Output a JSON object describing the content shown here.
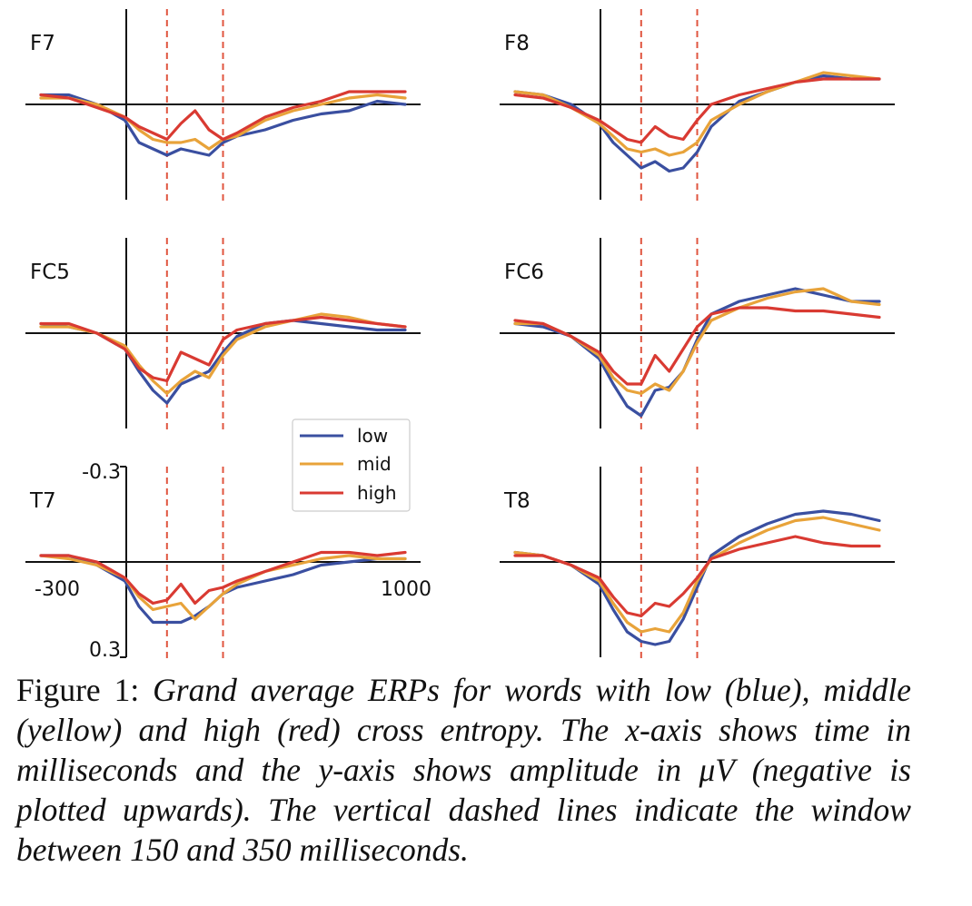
{
  "colors": {
    "low": "#3a4fa0",
    "mid": "#e8a33a",
    "high": "#d93a32",
    "window": "#e0553f",
    "axis": "#111111"
  },
  "axis_ticks": {
    "y_top": "-0.3",
    "y_bottom": "0.3",
    "x_left": "-300",
    "x_right": "1000"
  },
  "legend": {
    "low": "low",
    "mid": "mid",
    "high": "high"
  },
  "caption": {
    "prefix": "Figure 1: ",
    "body": "Grand average ERPs for words with low (blue), middle (yellow) and high (red) cross entropy. The x-axis shows time in milliseconds and the y-axis shows amplitude in μV (negative is plotted upwards). The vertical dashed lines indicate the window between 150 and 350 milliseconds."
  },
  "chart_data": {
    "type": "line",
    "xlim": [
      -300,
      1000
    ],
    "ylim": [
      -0.3,
      0.3
    ],
    "y_inverted": true,
    "x_ticks": [
      -300,
      1000
    ],
    "y_ticks": [
      -0.3,
      0.3
    ],
    "window_ms": [
      150,
      350
    ],
    "x": [
      -300,
      -200,
      -100,
      0,
      50,
      100,
      150,
      200,
      250,
      300,
      350,
      400,
      500,
      600,
      700,
      800,
      900,
      1000
    ],
    "panels": [
      {
        "name": "F7",
        "series": [
          {
            "name": "low",
            "values": [
              -0.03,
              -0.03,
              0.0,
              0.05,
              0.12,
              0.14,
              0.16,
              0.14,
              0.15,
              0.16,
              0.12,
              0.1,
              0.08,
              0.05,
              0.03,
              0.02,
              -0.01,
              0.0
            ]
          },
          {
            "name": "mid",
            "values": [
              -0.02,
              -0.02,
              0.0,
              0.04,
              0.08,
              0.11,
              0.12,
              0.12,
              0.11,
              0.14,
              0.11,
              0.1,
              0.05,
              0.02,
              0.0,
              -0.02,
              -0.03,
              -0.02
            ]
          },
          {
            "name": "high",
            "values": [
              -0.03,
              -0.02,
              0.01,
              0.04,
              0.07,
              0.09,
              0.11,
              0.06,
              0.02,
              0.08,
              0.11,
              0.09,
              0.04,
              0.01,
              -0.01,
              -0.04,
              -0.04,
              -0.04
            ]
          }
        ]
      },
      {
        "name": "F8",
        "series": [
          {
            "name": "low",
            "values": [
              -0.04,
              -0.03,
              0.0,
              0.06,
              0.12,
              0.16,
              0.2,
              0.18,
              0.21,
              0.2,
              0.15,
              0.07,
              -0.01,
              -0.04,
              -0.07,
              -0.09,
              -0.08,
              -0.08
            ]
          },
          {
            "name": "mid",
            "values": [
              -0.04,
              -0.03,
              0.01,
              0.06,
              0.1,
              0.14,
              0.15,
              0.14,
              0.16,
              0.15,
              0.12,
              0.05,
              0.0,
              -0.04,
              -0.07,
              -0.1,
              -0.09,
              -0.08
            ]
          },
          {
            "name": "high",
            "values": [
              -0.03,
              -0.02,
              0.01,
              0.05,
              0.08,
              0.11,
              0.12,
              0.07,
              0.1,
              0.11,
              0.05,
              0.0,
              -0.03,
              -0.05,
              -0.07,
              -0.08,
              -0.08,
              -0.08
            ]
          }
        ]
      },
      {
        "name": "FC5",
        "series": [
          {
            "name": "low",
            "values": [
              -0.03,
              -0.02,
              0.0,
              0.05,
              0.12,
              0.18,
              0.22,
              0.16,
              0.14,
              0.12,
              0.06,
              0.01,
              -0.03,
              -0.04,
              -0.03,
              -0.02,
              -0.01,
              -0.01
            ]
          },
          {
            "name": "mid",
            "values": [
              -0.02,
              -0.02,
              0.0,
              0.04,
              0.1,
              0.15,
              0.19,
              0.15,
              0.12,
              0.14,
              0.07,
              0.02,
              -0.02,
              -0.04,
              -0.06,
              -0.05,
              -0.03,
              -0.02
            ]
          },
          {
            "name": "high",
            "values": [
              -0.03,
              -0.03,
              0.0,
              0.05,
              0.11,
              0.14,
              0.15,
              0.06,
              0.08,
              0.1,
              0.02,
              -0.01,
              -0.03,
              -0.04,
              -0.05,
              -0.04,
              -0.03,
              -0.02
            ]
          }
        ]
      },
      {
        "name": "FC6",
        "series": [
          {
            "name": "low",
            "values": [
              -0.03,
              -0.02,
              0.01,
              0.08,
              0.16,
              0.23,
              0.26,
              0.18,
              0.17,
              0.12,
              0.02,
              -0.06,
              -0.1,
              -0.12,
              -0.14,
              -0.12,
              -0.1,
              -0.1
            ]
          },
          {
            "name": "mid",
            "values": [
              -0.03,
              -0.03,
              0.01,
              0.07,
              0.14,
              0.18,
              0.19,
              0.16,
              0.18,
              0.12,
              0.03,
              -0.04,
              -0.08,
              -0.11,
              -0.13,
              -0.14,
              -0.1,
              -0.09
            ]
          },
          {
            "name": "high",
            "values": [
              -0.04,
              -0.03,
              0.01,
              0.06,
              0.12,
              0.16,
              0.16,
              0.07,
              0.12,
              0.05,
              -0.02,
              -0.06,
              -0.08,
              -0.08,
              -0.07,
              -0.07,
              -0.06,
              -0.05
            ]
          }
        ]
      },
      {
        "name": "T7",
        "series": [
          {
            "name": "low",
            "values": [
              -0.02,
              -0.02,
              0.01,
              0.06,
              0.14,
              0.19,
              0.19,
              0.19,
              0.17,
              0.14,
              0.1,
              0.08,
              0.06,
              0.04,
              0.01,
              0.0,
              -0.01,
              -0.01
            ]
          },
          {
            "name": "mid",
            "values": [
              -0.02,
              -0.01,
              0.01,
              0.05,
              0.11,
              0.15,
              0.14,
              0.13,
              0.18,
              0.14,
              0.1,
              0.07,
              0.03,
              0.01,
              -0.01,
              -0.02,
              -0.01,
              -0.01
            ]
          },
          {
            "name": "high",
            "values": [
              -0.02,
              -0.02,
              0.0,
              0.05,
              0.1,
              0.13,
              0.12,
              0.07,
              0.13,
              0.09,
              0.08,
              0.06,
              0.03,
              0.0,
              -0.03,
              -0.03,
              -0.02,
              -0.03
            ]
          }
        ]
      },
      {
        "name": "T8",
        "series": [
          {
            "name": "low",
            "values": [
              -0.03,
              -0.02,
              0.01,
              0.07,
              0.15,
              0.22,
              0.25,
              0.26,
              0.25,
              0.18,
              0.08,
              -0.02,
              -0.08,
              -0.12,
              -0.15,
              -0.16,
              -0.15,
              -0.13
            ]
          },
          {
            "name": "mid",
            "values": [
              -0.03,
              -0.02,
              0.01,
              0.06,
              0.13,
              0.19,
              0.22,
              0.21,
              0.22,
              0.16,
              0.06,
              -0.01,
              -0.06,
              -0.1,
              -0.13,
              -0.14,
              -0.12,
              -0.1
            ]
          },
          {
            "name": "high",
            "values": [
              -0.02,
              -0.02,
              0.01,
              0.05,
              0.11,
              0.16,
              0.17,
              0.13,
              0.14,
              0.1,
              0.05,
              -0.01,
              -0.04,
              -0.06,
              -0.08,
              -0.06,
              -0.05,
              -0.05
            ]
          }
        ]
      }
    ]
  }
}
